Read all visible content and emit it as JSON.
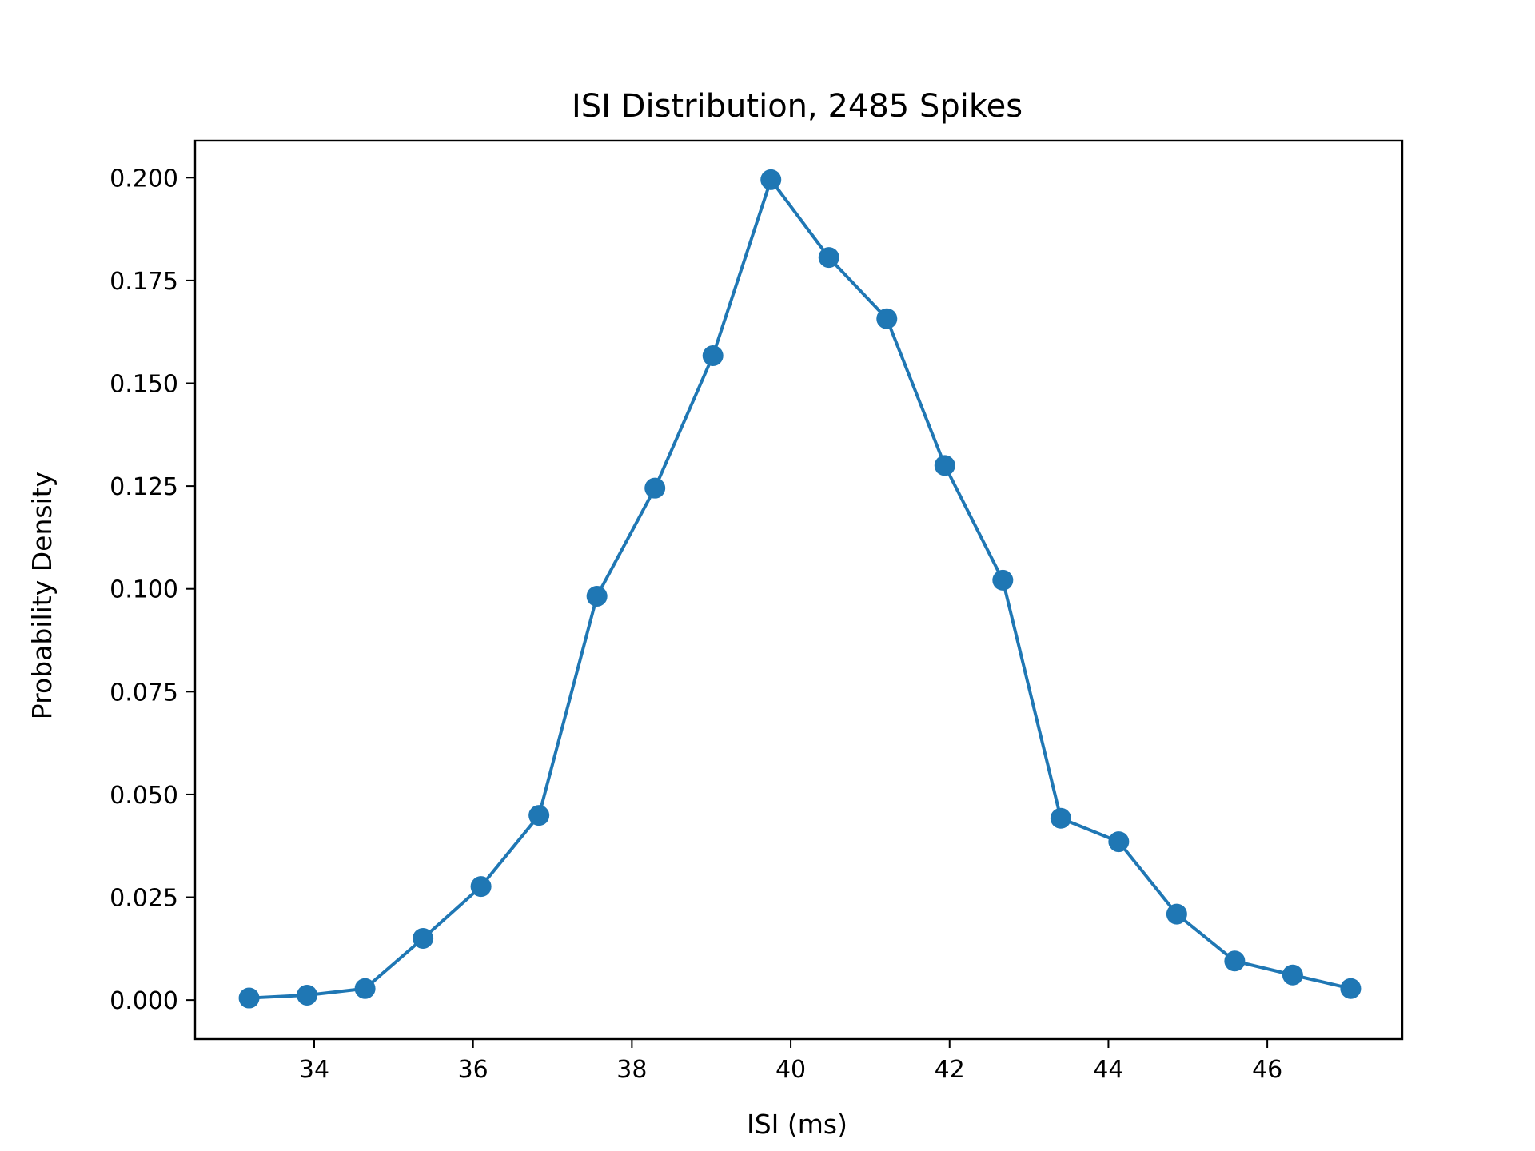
{
  "chart_data": {
    "type": "line",
    "title": "ISI Distribution, 2485 Spikes",
    "xlabel": "ISI (ms)",
    "ylabel": "Probability Density",
    "xlim": [
      32.5,
      47.7
    ],
    "ylim": [
      -0.0095,
      0.209
    ],
    "x_ticks": [
      34,
      36,
      38,
      40,
      42,
      44,
      46
    ],
    "x_tick_labels": [
      "34",
      "36",
      "38",
      "40",
      "42",
      "44",
      "46"
    ],
    "y_ticks": [
      0.0,
      0.025,
      0.05,
      0.075,
      0.1,
      0.125,
      0.15,
      0.175,
      0.2
    ],
    "y_tick_labels": [
      "0.000",
      "0.025",
      "0.050",
      "0.075",
      "0.100",
      "0.125",
      "0.150",
      "0.175",
      "0.200"
    ],
    "grid": false,
    "legend": "none",
    "series": [
      {
        "color": "#1f77b4",
        "marker": "circle",
        "x": [
          33.18,
          33.91,
          34.64,
          35.37,
          36.1,
          36.83,
          37.56,
          38.29,
          39.02,
          39.75,
          40.48,
          41.21,
          41.94,
          42.67,
          43.4,
          44.13,
          44.86,
          45.59,
          46.32,
          47.05
        ],
        "y": [
          0.0005,
          0.0012,
          0.0028,
          0.015,
          0.0276,
          0.0449,
          0.0982,
          0.1245,
          0.1567,
          0.1995,
          0.1806,
          0.1657,
          0.13,
          0.1021,
          0.0442,
          0.0385,
          0.0209,
          0.0095,
          0.0061,
          0.0028
        ]
      }
    ]
  }
}
